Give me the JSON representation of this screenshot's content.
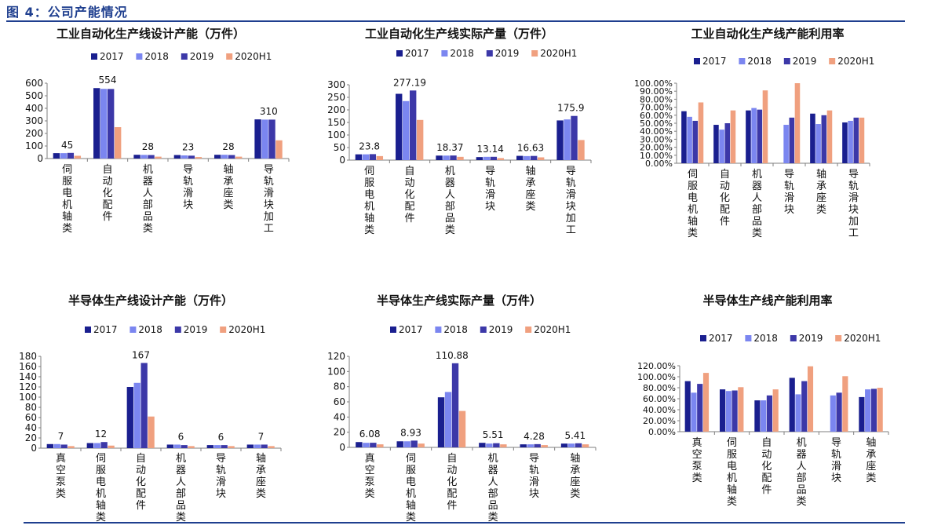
{
  "figure": {
    "title": "图 4：公司产能情况"
  },
  "colors": {
    "2017": "#1a1f8f",
    "2018": "#7b86f0",
    "2019": "#3c38a8",
    "2020H1": "#f0a07f",
    "axis": "#7f7f7f",
    "title_blue": "#1f3f8f"
  },
  "chart_data": [
    {
      "id": "c1",
      "type": "bar",
      "title": "工业自动化生产线设计产能（万件）",
      "categories": [
        "伺服电机轴类",
        "自动化配件",
        "机器人部品类",
        "导轨滑块",
        "轴承座类",
        "导轨滑块加工"
      ],
      "series": [
        {
          "name": "2017",
          "values": [
            43,
            561,
            30,
            28,
            30,
            312
          ]
        },
        {
          "name": "2018",
          "values": [
            43,
            555,
            29,
            25,
            30,
            310
          ]
        },
        {
          "name": "2019",
          "values": [
            45,
            554,
            28,
            23,
            28,
            310
          ]
        },
        {
          "name": "2020H1",
          "values": [
            22,
            250,
            15,
            12,
            15,
            145
          ]
        }
      ],
      "data_labels": [
        [
          "45",
          0
        ],
        [
          "554",
          1
        ],
        [
          "28",
          2
        ],
        [
          "23",
          3
        ],
        [
          "28",
          4
        ],
        [
          "310",
          5
        ]
      ],
      "ylim": [
        0,
        600
      ],
      "yticks": [
        "0",
        "100",
        "200",
        "300",
        "400",
        "500",
        "600"
      ],
      "legend": "top"
    },
    {
      "id": "c2",
      "type": "bar",
      "title": "工业自动化生产线实际产量（万件）",
      "categories": [
        "伺服电机轴类",
        "自动化配件",
        "机器人部品类",
        "导轨滑块",
        "轴承座类",
        "导轨滑块加工"
      ],
      "series": [
        {
          "name": "2017",
          "values": [
            23,
            264,
            18,
            12,
            17,
            158
          ]
        },
        {
          "name": "2018",
          "values": [
            23,
            235,
            18,
            13,
            16,
            162
          ]
        },
        {
          "name": "2019",
          "values": [
            23.8,
            277.19,
            18.37,
            13.14,
            16.63,
            175.9
          ]
        },
        {
          "name": "2020H1",
          "values": [
            16,
            160,
            13,
            8,
            11,
            80
          ]
        }
      ],
      "data_labels": [
        [
          "23.8",
          0
        ],
        [
          "277.19",
          1
        ],
        [
          "18.37",
          2
        ],
        [
          "13.14",
          3
        ],
        [
          "16.63",
          4
        ],
        [
          "175.9",
          5
        ]
      ],
      "ylim": [
        0,
        300
      ],
      "yticks": [
        "0",
        "50",
        "100",
        "150",
        "200",
        "250",
        "300"
      ],
      "legend": "top"
    },
    {
      "id": "c3",
      "type": "bar",
      "title": "工业自动化生产线产能利用率",
      "categories": [
        "伺服电机轴类",
        "自动化配件",
        "机器人部品类",
        "导轨滑块",
        "轴承座类",
        "导轨滑块加工"
      ],
      "series": [
        {
          "name": "2017",
          "values": [
            65,
            48,
            66,
            0,
            62,
            51
          ]
        },
        {
          "name": "2018",
          "values": [
            58,
            42,
            69,
            48,
            49,
            53
          ]
        },
        {
          "name": "2019",
          "values": [
            53,
            50,
            67,
            57,
            60,
            57
          ]
        },
        {
          "name": "2020H1",
          "values": [
            76,
            66,
            91,
            100,
            66,
            57
          ]
        }
      ],
      "data_labels": [],
      "ylim": [
        0,
        100
      ],
      "yticks": [
        "0.00%",
        "10.00%",
        "20.00%",
        "30.00%",
        "40.00%",
        "50.00%",
        "60.00%",
        "70.00%",
        "80.00%",
        "90.00%",
        "100.00%"
      ],
      "legend": "top"
    },
    {
      "id": "c4",
      "type": "bar",
      "title": "半导体生产线设计产能（万件）",
      "categories": [
        "真空泵类",
        "伺服电机轴类",
        "自动化配件",
        "机器人部品类",
        "导轨滑块",
        "轴承座类"
      ],
      "series": [
        {
          "name": "2017",
          "values": [
            8,
            10,
            120,
            7,
            6,
            7
          ]
        },
        {
          "name": "2018",
          "values": [
            8,
            10,
            128,
            7,
            6,
            7
          ]
        },
        {
          "name": "2019",
          "values": [
            7,
            12,
            167,
            6,
            6,
            7
          ]
        },
        {
          "name": "2020H1",
          "values": [
            4,
            5,
            62,
            4,
            4,
            4
          ]
        }
      ],
      "data_labels": [
        [
          "7",
          0
        ],
        [
          "12",
          1
        ],
        [
          "167",
          2
        ],
        [
          "6",
          3
        ],
        [
          "6",
          4
        ],
        [
          "7",
          5
        ]
      ],
      "ylim": [
        0,
        180
      ],
      "yticks": [
        "0",
        "20",
        "40",
        "60",
        "80",
        "100",
        "120",
        "140",
        "160",
        "180"
      ],
      "legend": "top"
    },
    {
      "id": "c5",
      "type": "bar",
      "title": "半导体生产线实际产量（万件）",
      "categories": [
        "真空泵类",
        "伺服电机轴类",
        "自动化配件",
        "机器人部品类",
        "导轨滑块",
        "轴承座类"
      ],
      "series": [
        {
          "name": "2017",
          "values": [
            7,
            8,
            66,
            6,
            4,
            5
          ]
        },
        {
          "name": "2018",
          "values": [
            6,
            8,
            73,
            5,
            4,
            5
          ]
        },
        {
          "name": "2019",
          "values": [
            6.08,
            8.93,
            110.88,
            5.51,
            4.28,
            5.41
          ]
        },
        {
          "name": "2020H1",
          "values": [
            4,
            5,
            48,
            4,
            3,
            4
          ]
        }
      ],
      "data_labels": [
        [
          "6.08",
          0
        ],
        [
          "8.93",
          1
        ],
        [
          "110.88",
          2
        ],
        [
          "5.51",
          3
        ],
        [
          "4.28",
          4
        ],
        [
          "5.41",
          5
        ]
      ],
      "ylim": [
        0,
        120
      ],
      "yticks": [
        "0",
        "20",
        "40",
        "60",
        "80",
        "100",
        "120"
      ],
      "legend": "top"
    },
    {
      "id": "c6",
      "type": "bar",
      "title": "半导体生产线产能利用率",
      "categories": [
        "真空泵类",
        "伺服电机轴类",
        "自动化配件",
        "机器人部品类",
        "导轨滑块",
        "轴承座类"
      ],
      "series": [
        {
          "name": "2017",
          "values": [
            92,
            77,
            57,
            98,
            0,
            63
          ]
        },
        {
          "name": "2018",
          "values": [
            71,
            74,
            57,
            68,
            66,
            77
          ]
        },
        {
          "name": "2019",
          "values": [
            87,
            75,
            66,
            92,
            71,
            78
          ]
        },
        {
          "name": "2020H1",
          "values": [
            107,
            81,
            77,
            119,
            101,
            80
          ]
        }
      ],
      "data_labels": [],
      "ylim": [
        0,
        120
      ],
      "yticks": [
        "0.00%",
        "20.00%",
        "40.00%",
        "60.00%",
        "80.00%",
        "100.00%",
        "120.00%"
      ],
      "legend": "top"
    }
  ]
}
